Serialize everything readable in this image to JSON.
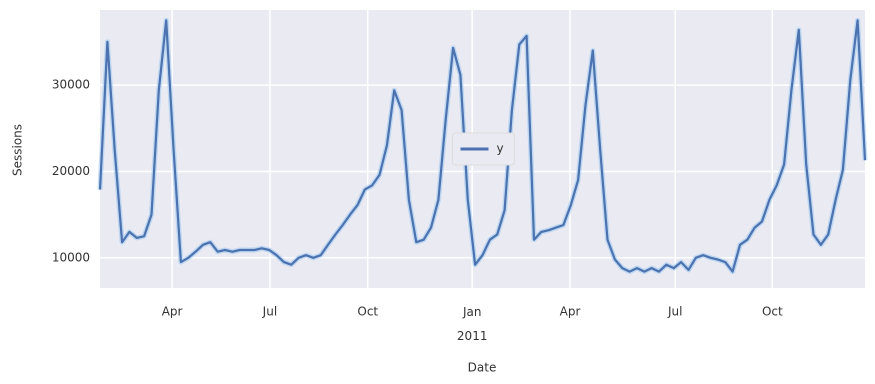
{
  "chart_data": {
    "type": "line",
    "ylabel": "Sessions",
    "xlabel": "Date",
    "xlim": [
      0,
      104
    ],
    "xticks": [
      {
        "value": 9.8,
        "label": "Apr"
      },
      {
        "value": 23.1,
        "label": "Jul"
      },
      {
        "value": 36.4,
        "label": "Oct"
      },
      {
        "value": 50.6,
        "label": "Jan 2011"
      },
      {
        "value": 63.9,
        "label": "Apr"
      },
      {
        "value": 78.2,
        "label": "Jul"
      },
      {
        "value": 91.4,
        "label": "Oct"
      }
    ],
    "ylim": [
      6500,
      38700
    ],
    "yticks": [
      10000,
      20000,
      30000
    ],
    "grid": true,
    "legend": "center",
    "series": [
      {
        "name": "y",
        "color": "#4c72b0",
        "values": [
          17900,
          35000,
          22500,
          11800,
          13000,
          12300,
          12500,
          15000,
          29400,
          37500,
          22500,
          9500,
          10000,
          10700,
          11500,
          11800,
          10700,
          10900,
          10700,
          10900,
          10900,
          10900,
          11100,
          10900,
          10300,
          9500,
          9200,
          10000,
          10300,
          10000,
          10300,
          11500,
          12700,
          13800,
          15000,
          16100,
          17900,
          18400,
          19600,
          23000,
          29400,
          27100,
          16700,
          11800,
          12100,
          13500,
          16700,
          26000,
          34300,
          31200,
          16700,
          9200,
          10300,
          12100,
          12700,
          15500,
          27100,
          34700,
          35700,
          12100,
          13000,
          13200,
          13500,
          13800,
          16100,
          19000,
          27700,
          34000,
          22500,
          12100,
          9800,
          8800,
          8400,
          8800,
          8400,
          8800,
          8400,
          9200,
          8800,
          9500,
          8600,
          10000,
          10300,
          10000,
          9800,
          9500,
          8400,
          11500,
          12100,
          13500,
          14200,
          16700,
          18400,
          20800,
          29400,
          36400,
          20800,
          12700,
          11500,
          12700,
          16700,
          20200,
          30600,
          37500,
          21300
        ]
      }
    ]
  }
}
